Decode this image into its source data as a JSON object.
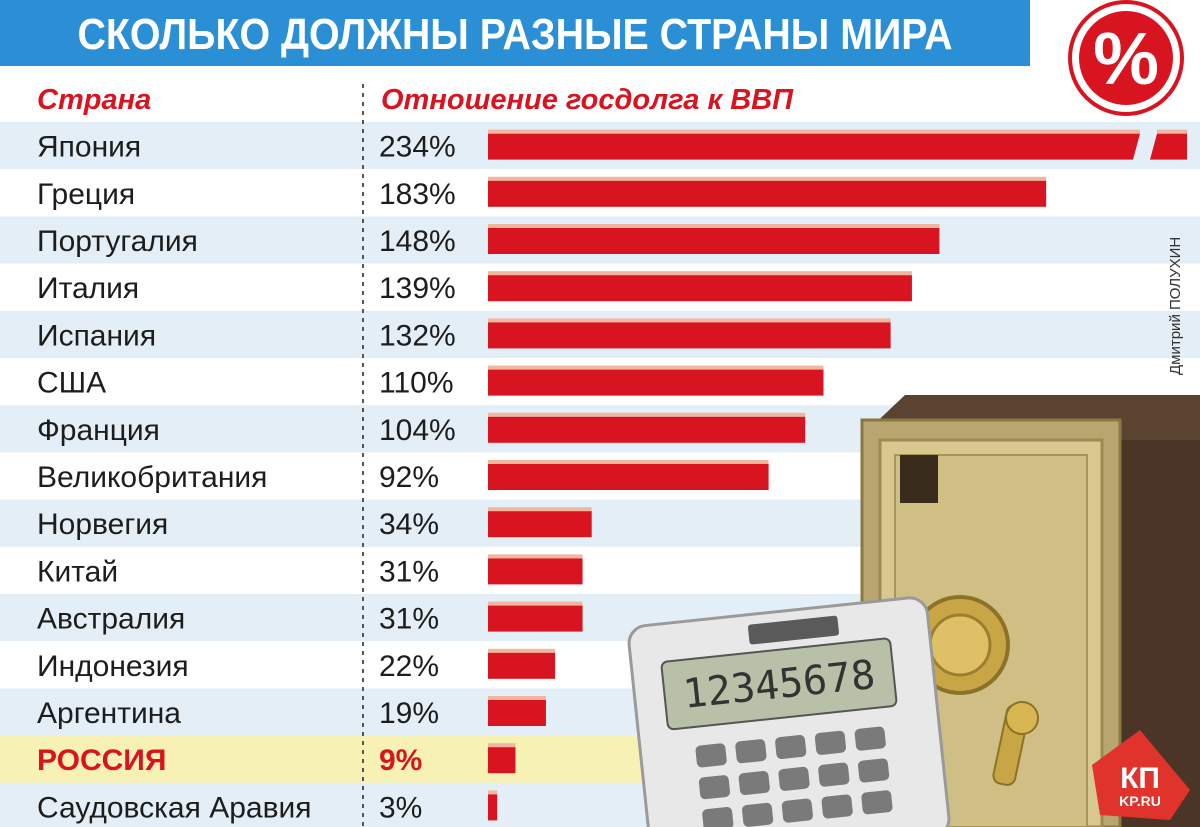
{
  "colors": {
    "title_bg": "#2a8fd4",
    "row_band": "#e4eef7",
    "bar": "#d7141f",
    "bar_top": "#f2b59d",
    "highlight_band": "#f7f2b3",
    "header_red": "#d7141f",
    "text": "#1d1d1b"
  },
  "header": {
    "title": "СКОЛЬКО ДОЛЖНЫ РАЗНЫЕ СТРАНЫ МИРА",
    "col_country": "Страна",
    "col_ratio": "Отношение госдолга к ВВП",
    "percent_badge": "%"
  },
  "credit": "Дмитрий ПОЛУХИН",
  "logo": {
    "main": "КП",
    "sub": "KP.RU"
  },
  "calculator_display": "12345678",
  "chart_data": {
    "type": "bar",
    "orientation": "horizontal",
    "title": "СКОЛЬКО ДОЛЖНЫ РАЗНЫЕ СТРАНЫ МИРА",
    "xlabel": "Отношение госдолга к ВВП",
    "ylabel": "Страна",
    "value_unit": "%",
    "highlight": "РОССИЯ",
    "broken_bar": "Япония",
    "categories": [
      "Япония",
      "Греция",
      "Португалия",
      "Италия",
      "Испания",
      "США",
      "Франция",
      "Великобритания",
      "Норвегия",
      "Китай",
      "Австралия",
      "Индонезия",
      "Аргентина",
      "РОССИЯ",
      "Саудовская Аравия"
    ],
    "values": [
      234,
      183,
      148,
      139,
      132,
      110,
      104,
      92,
      34,
      31,
      31,
      22,
      19,
      9,
      3
    ],
    "value_labels": [
      "234%",
      "183%",
      "148%",
      "139%",
      "132%",
      "110%",
      "104%",
      "92%",
      "34%",
      "31%",
      "31%",
      "22%",
      "19%",
      "9%",
      "3%"
    ]
  }
}
